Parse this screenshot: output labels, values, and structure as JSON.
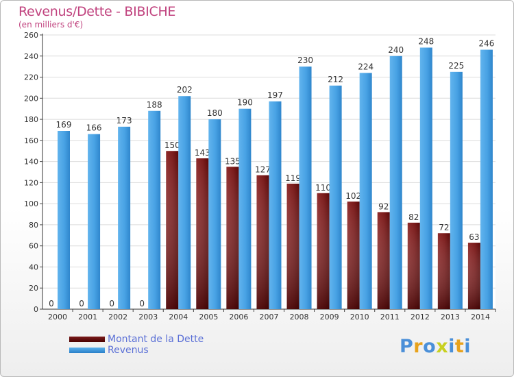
{
  "header": {
    "title": "Revenus/Dette - BIBICHE",
    "subtitle": "(en milliers d'€)"
  },
  "chart_data": {
    "type": "bar",
    "title": "Revenus/Dette - BIBICHE",
    "ylabel": "(en milliers d'€)",
    "xlabel": "",
    "ylim": [
      0,
      260
    ],
    "yticks": [
      0,
      20,
      40,
      60,
      80,
      100,
      120,
      140,
      160,
      180,
      200,
      220,
      240,
      260
    ],
    "grid": true,
    "legend": "bottom-left",
    "categories": [
      "2000",
      "2001",
      "2002",
      "2003",
      "2004",
      "2005",
      "2006",
      "2007",
      "2008",
      "2009",
      "2010",
      "2011",
      "2012",
      "2013",
      "2014"
    ],
    "series": [
      {
        "name": "Montant de la Dette",
        "color": "#7a1a1a",
        "values": [
          0,
          0,
          0,
          0,
          150,
          143,
          135,
          127,
          119,
          110,
          102,
          92,
          82,
          72,
          63
        ]
      },
      {
        "name": "Revenus",
        "color": "#3a9ae0",
        "values": [
          169,
          166,
          173,
          188,
          202,
          180,
          190,
          197,
          230,
          212,
          224,
          240,
          248,
          225,
          246
        ]
      }
    ]
  },
  "legend": {
    "items": [
      "Montant de la Dette",
      "Revenus"
    ]
  },
  "logo": {
    "text": "Proxiti",
    "colors": [
      "#4a8fd8",
      "#e8a21c",
      "#4a8fd8",
      "#c8d020",
      "#4a8fd8",
      "#e8a21c",
      "#4a8fd8"
    ]
  }
}
